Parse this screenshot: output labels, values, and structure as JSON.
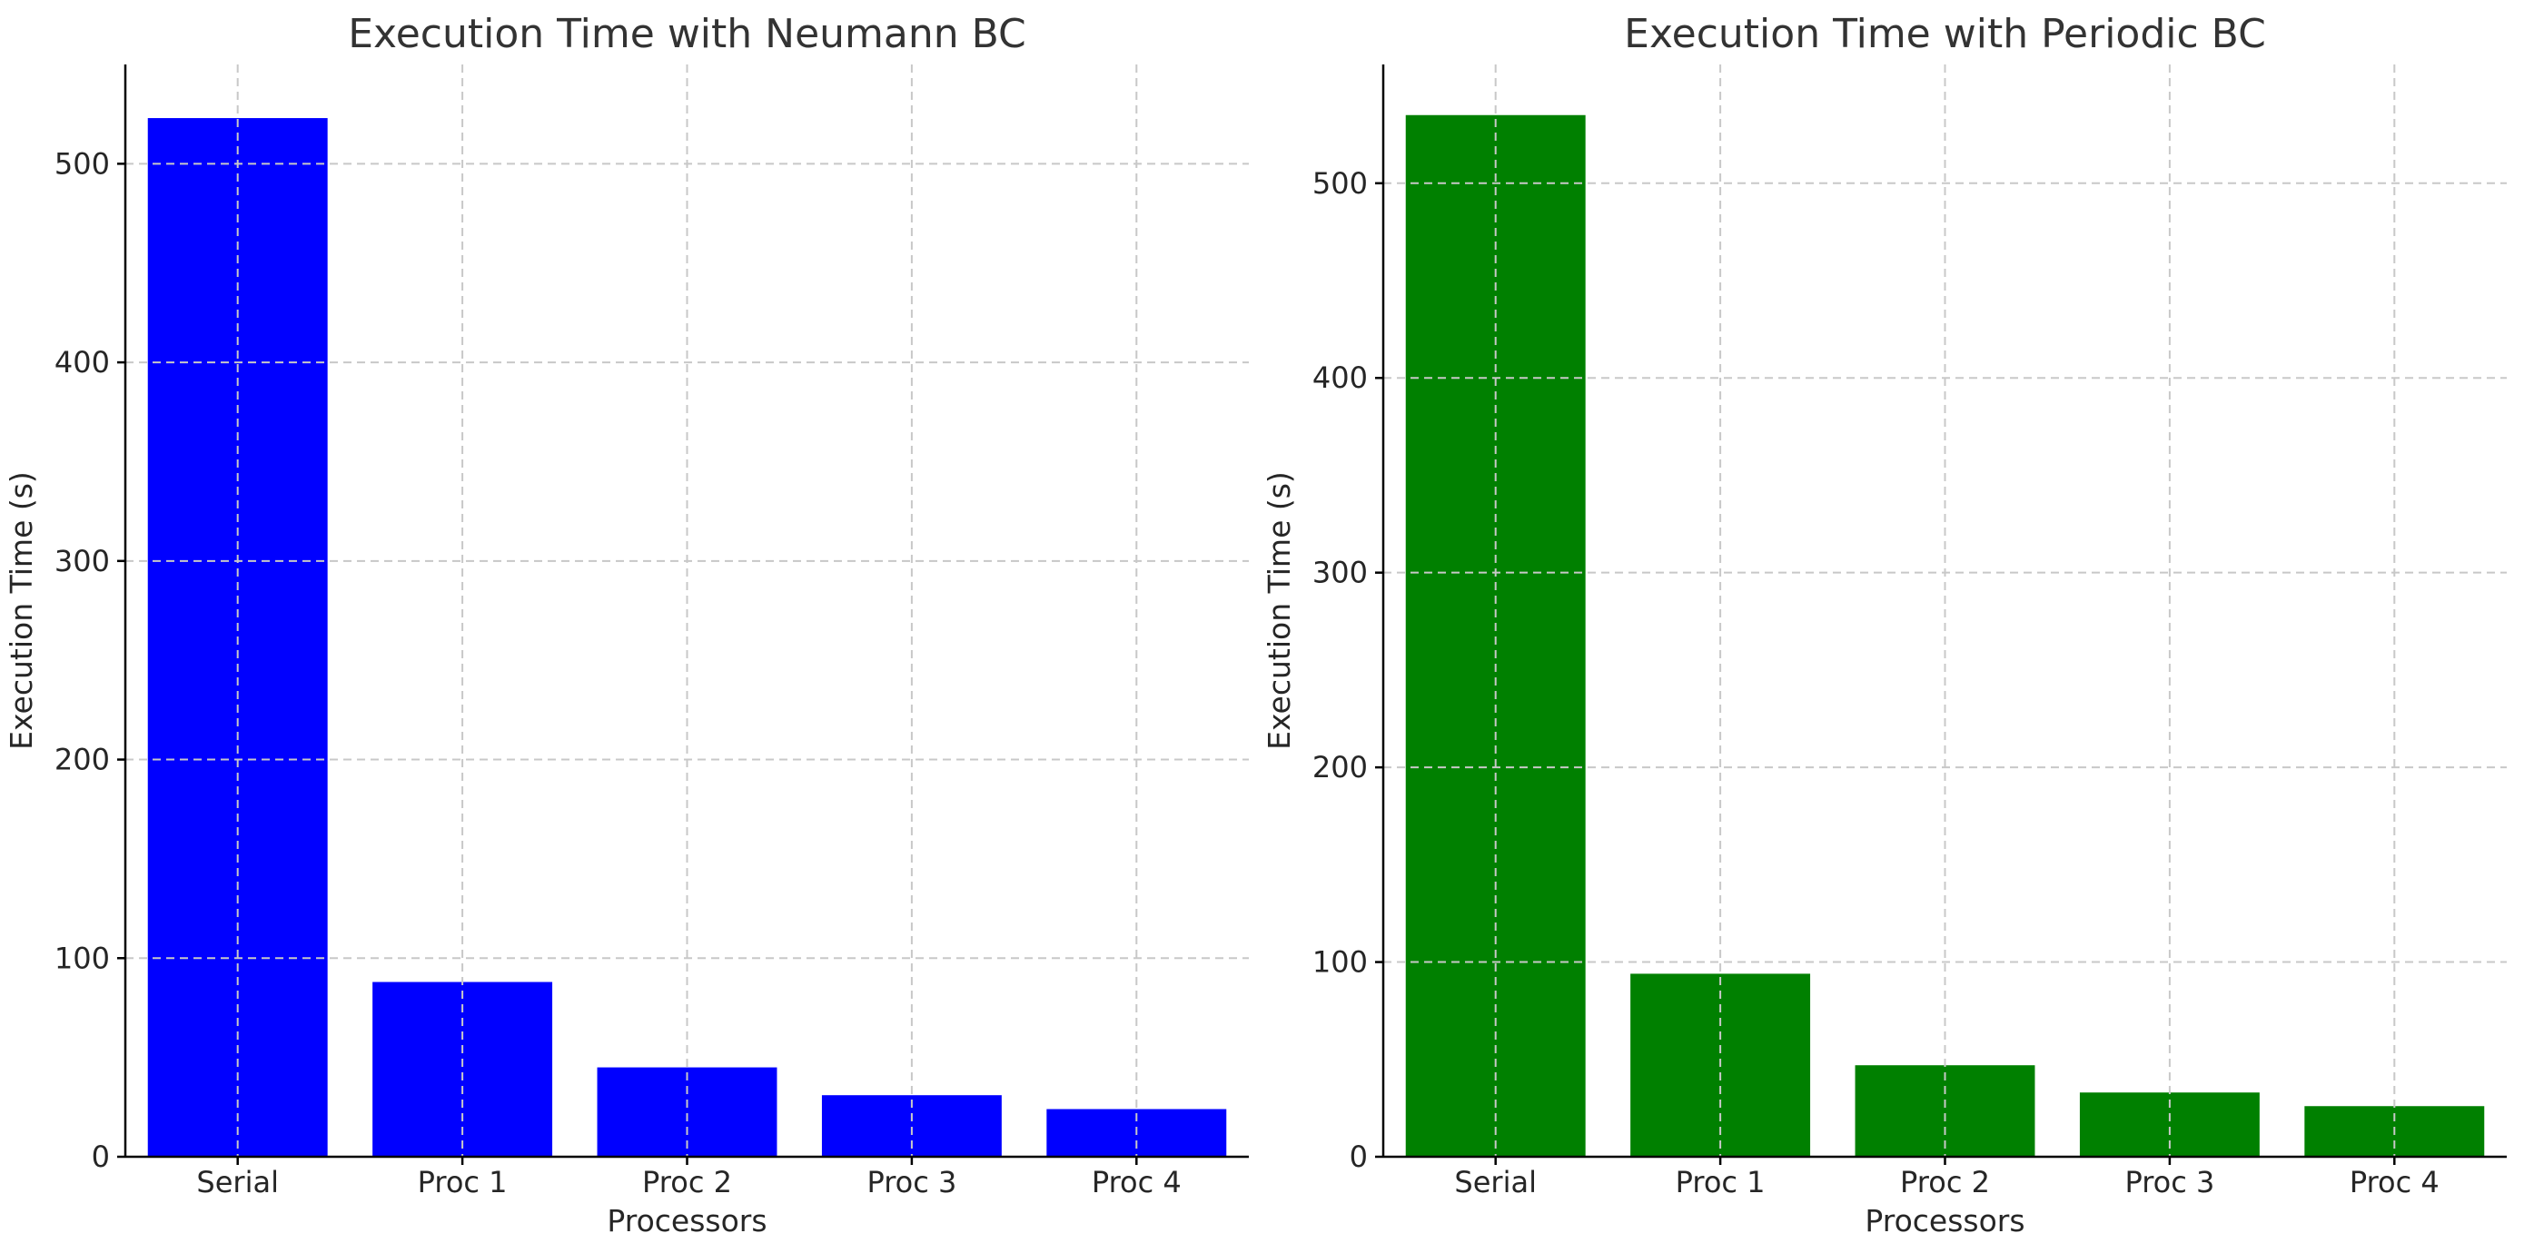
{
  "chart_data": [
    {
      "type": "bar",
      "title": "Execution Time with Neumann BC",
      "xlabel": "Processors",
      "ylabel": "Execution Time (s)",
      "categories": [
        "Serial",
        "Proc 1",
        "Proc 2",
        "Proc 3",
        "Proc 4"
      ],
      "values": [
        523,
        88,
        45,
        31,
        24
      ],
      "ylim": [
        0,
        550
      ],
      "yticks": [
        0,
        100,
        200,
        300,
        400,
        500
      ],
      "bar_color": "#0000ff",
      "grid": true
    },
    {
      "type": "bar",
      "title": "Execution Time with Periodic BC",
      "xlabel": "Processors",
      "ylabel": "Execution Time (s)",
      "categories": [
        "Serial",
        "Proc 1",
        "Proc 2",
        "Proc 3",
        "Proc 4"
      ],
      "values": [
        535,
        94,
        47,
        33,
        26
      ],
      "ylim": [
        0,
        561
      ],
      "yticks": [
        0,
        100,
        200,
        300,
        400,
        500
      ],
      "bar_color": "#008000",
      "grid": true
    }
  ]
}
